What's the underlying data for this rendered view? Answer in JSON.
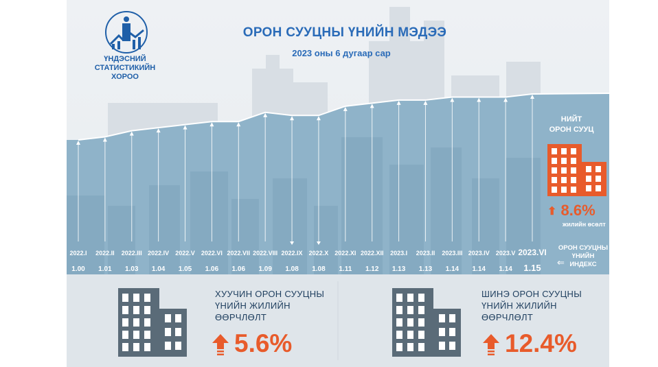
{
  "header": {
    "org_name": [
      "ҮНДЭСНИЙ",
      "СТАТИСТИКИЙН",
      "ХОРОО"
    ],
    "title": "ОРОН СУУЦНЫ ҮНИЙН МЭДЭЭ",
    "subtitle": "2023 оны 6 дугаар сар"
  },
  "total_housing": {
    "label": [
      "НИЙТ",
      "ОРОН СУУЦ"
    ],
    "change": "8.6%",
    "change_caption": "жилийн өсөлт"
  },
  "index_legend": [
    "ОРОН СУУЦНЫ",
    "ҮНИЙН",
    "ИНДЕКС"
  ],
  "old_housing": {
    "title": [
      "ХУУЧИН ОРОН СУУЦНЫ",
      "ҮНИЙН ЖИЛИЙН",
      "ӨӨРЧЛӨЛТ"
    ],
    "change": "5.6%"
  },
  "new_housing": {
    "title": [
      "ШИНЭ ОРОН СУУЦНЫ",
      "ҮНИЙН ЖИЛИЙН",
      "ӨӨРЧЛӨЛТ"
    ],
    "change": "12.4%"
  },
  "colors": {
    "accent_orange": "#e85b2b",
    "title_blue": "#2a6bb8",
    "area_blue": "#8fb3c9",
    "line_white": "#ffffff",
    "dark_building": "#5a6b78"
  },
  "chart_data": {
    "type": "area",
    "title": "ОРОН СУУЦНЫ ҮНИЙН МЭДЭЭ",
    "xlabel": "",
    "ylabel": "",
    "categories": [
      "2022.I",
      "2022.II",
      "2022.III",
      "2022.IV",
      "2022.V",
      "2022.VI",
      "2022.VII",
      "2022.VIII",
      "2022.IX",
      "2022.X",
      "2022.XI",
      "2022.XII",
      "2023.I",
      "2023.II",
      "2023.III",
      "2023.IV",
      "2023.V",
      "2023.VI"
    ],
    "values": [
      1.0,
      1.01,
      1.03,
      1.04,
      1.05,
      1.06,
      1.06,
      1.09,
      1.08,
      1.08,
      1.11,
      1.12,
      1.13,
      1.13,
      1.14,
      1.14,
      1.14,
      1.15
    ],
    "value_labels": [
      "1.00",
      "1.01",
      "1.03",
      "1.04",
      "1.05",
      "1.06",
      "1.06",
      "1.09",
      "1.08",
      "1.08",
      "1.11",
      "1.12",
      "1.13",
      "1.13",
      "1.14",
      "1.14",
      "1.14",
      "1.15"
    ],
    "grid": false,
    "legend": "none"
  }
}
